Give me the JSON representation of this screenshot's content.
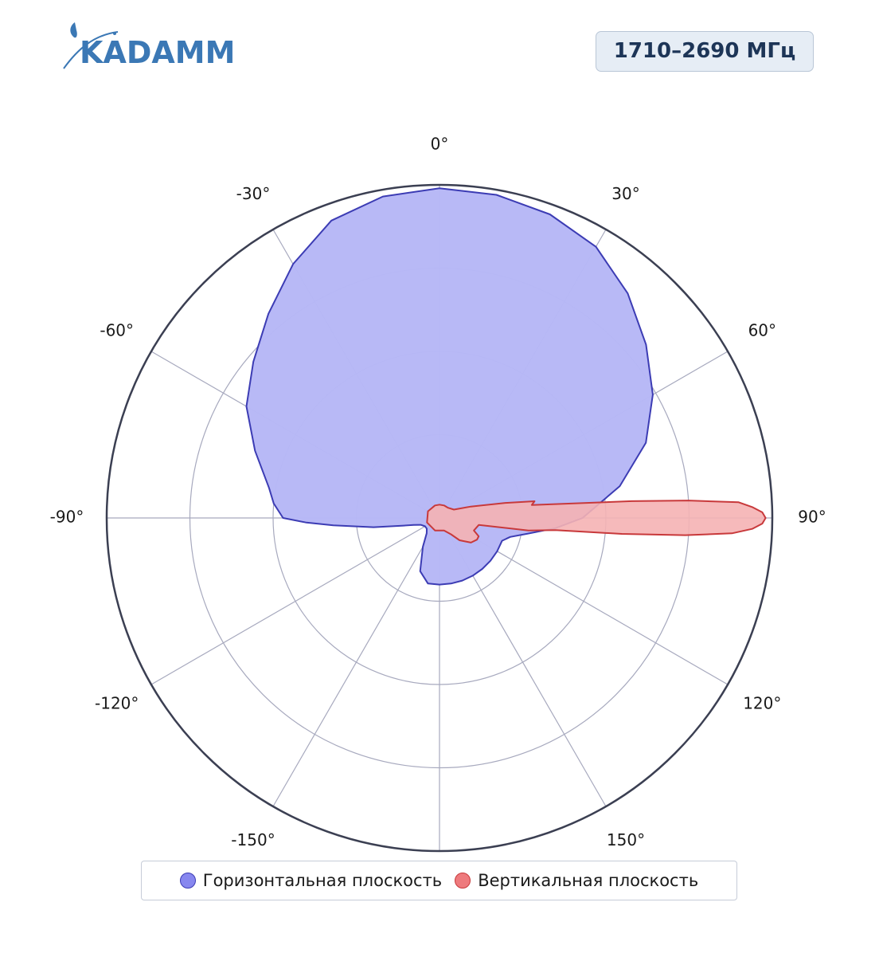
{
  "brand": {
    "name": "KADAMM"
  },
  "badge": {
    "frequency": "1710–2690 МГц"
  },
  "colors": {
    "horizontal_fill": "#b7b8f6",
    "horizontal_stroke": "#3c3cb4",
    "vertical_fill": "#f5b2b4",
    "vertical_stroke": "#c8393b",
    "grid": "#a7a9be",
    "outer_ring": "#3b3f52",
    "logo": "#3b78b5"
  },
  "chart_data": {
    "type": "polar",
    "angle_direction": "clockwise",
    "zero_at": "top",
    "angular_ticks": [
      {
        "angle": 0,
        "label": "0°"
      },
      {
        "angle": 30,
        "label": "30°"
      },
      {
        "angle": 60,
        "label": "60°"
      },
      {
        "angle": 90,
        "label": "90°"
      },
      {
        "angle": 120,
        "label": "120°"
      },
      {
        "angle": 150,
        "label": "150°"
      },
      {
        "angle": 180,
        "label": ""
      },
      {
        "angle": -150,
        "label": "-150°"
      },
      {
        "angle": -120,
        "label": "-120°"
      },
      {
        "angle": -90,
        "label": "-90°"
      },
      {
        "angle": -60,
        "label": "-60°"
      },
      {
        "angle": -30,
        "label": "-30°"
      }
    ],
    "radial_range": [
      0,
      1
    ],
    "radial_rings": [
      0.25,
      0.5,
      0.75,
      1.0
    ],
    "radial_tick_labels": "none",
    "grid": true,
    "legend_position": "bottom",
    "series": [
      {
        "name": "Горизонтальная плоскость",
        "fill": true,
        "points": [
          [
            0,
            0.99
          ],
          [
            10,
            0.985
          ],
          [
            20,
            0.97
          ],
          [
            30,
            0.94
          ],
          [
            40,
            0.88
          ],
          [
            50,
            0.81
          ],
          [
            60,
            0.74
          ],
          [
            70,
            0.66
          ],
          [
            80,
            0.55
          ],
          [
            90,
            0.43
          ],
          [
            95,
            0.35
          ],
          [
            100,
            0.27
          ],
          [
            105,
            0.22
          ],
          [
            110,
            0.2
          ],
          [
            120,
            0.2
          ],
          [
            130,
            0.2
          ],
          [
            140,
            0.2
          ],
          [
            150,
            0.2
          ],
          [
            160,
            0.2
          ],
          [
            170,
            0.2
          ],
          [
            180,
            0.2
          ],
          [
            190,
            0.2
          ],
          [
            200,
            0.17
          ],
          [
            210,
            0.1
          ],
          [
            220,
            0.06
          ],
          [
            230,
            0.05
          ],
          [
            240,
            0.05
          ],
          [
            250,
            0.06
          ],
          [
            255,
            0.08
          ],
          [
            258,
            0.11
          ],
          [
            262,
            0.2
          ],
          [
            266,
            0.32
          ],
          [
            268,
            0.4
          ],
          [
            270,
            0.47
          ],
          [
            275,
            0.5
          ],
          [
            280,
            0.52
          ],
          [
            290,
            0.59
          ],
          [
            300,
            0.67
          ],
          [
            310,
            0.73
          ],
          [
            320,
            0.8
          ],
          [
            330,
            0.88
          ],
          [
            340,
            0.95
          ],
          [
            350,
            0.98
          ]
        ]
      },
      {
        "name": "Вертикальная плоскость",
        "fill": true,
        "points": [
          [
            0,
            0.04
          ],
          [
            20,
            0.04
          ],
          [
            40,
            0.04
          ],
          [
            60,
            0.05
          ],
          [
            70,
            0.1
          ],
          [
            77,
            0.2
          ],
          [
            80,
            0.29
          ],
          [
            82,
            0.28
          ],
          [
            85,
            0.58
          ],
          [
            86,
            0.75
          ],
          [
            87,
            0.9
          ],
          [
            88,
            0.94
          ],
          [
            89,
            0.97
          ],
          [
            90,
            0.98
          ],
          [
            91,
            0.97
          ],
          [
            92,
            0.94
          ],
          [
            93,
            0.88
          ],
          [
            94,
            0.74
          ],
          [
            95,
            0.55
          ],
          [
            96,
            0.35
          ],
          [
            98,
            0.27
          ],
          [
            100,
            0.12
          ],
          [
            110,
            0.11
          ],
          [
            115,
            0.13
          ],
          [
            120,
            0.13
          ],
          [
            128,
            0.12
          ],
          [
            134,
            0.1
          ],
          [
            138,
            0.09
          ],
          [
            145,
            0.06
          ],
          [
            160,
            0.04
          ],
          [
            200,
            0.04
          ],
          [
            250,
            0.04
          ],
          [
            300,
            0.04
          ],
          [
            340,
            0.04
          ]
        ]
      }
    ]
  },
  "legend": {
    "items": [
      {
        "label": "Горизонтальная плоскость",
        "color": "#8787ef"
      },
      {
        "label": "Вертикальная плоскость",
        "color": "#ee7a7d"
      }
    ]
  }
}
